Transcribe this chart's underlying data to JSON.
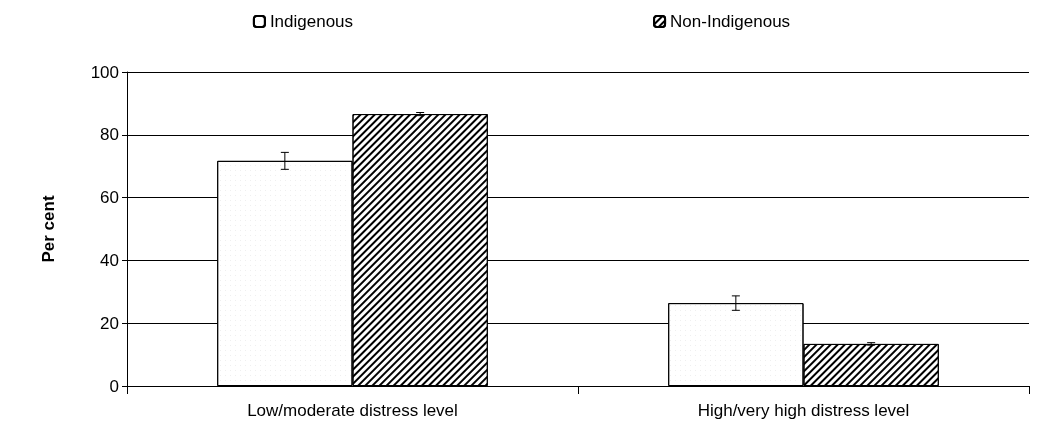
{
  "chart_data": {
    "type": "bar",
    "ylabel": "Per cent",
    "categories": [
      "Low/moderate distress level",
      "High/very high distress level"
    ],
    "series": [
      {
        "name": "Indigenous",
        "color": "#ffffff",
        "values": [
          71.7,
          26.4
        ],
        "errors": [
          2.7,
          2.3
        ]
      },
      {
        "name": "Non-Indigenous",
        "color": "#ffffff",
        "values": [
          86.6,
          13.4
        ],
        "errors": [
          0.5,
          0.4
        ]
      }
    ],
    "ylim": [
      0,
      100
    ],
    "yticks": [
      0,
      20,
      40,
      60,
      80,
      100
    ],
    "grid": "y",
    "legend": "top"
  }
}
